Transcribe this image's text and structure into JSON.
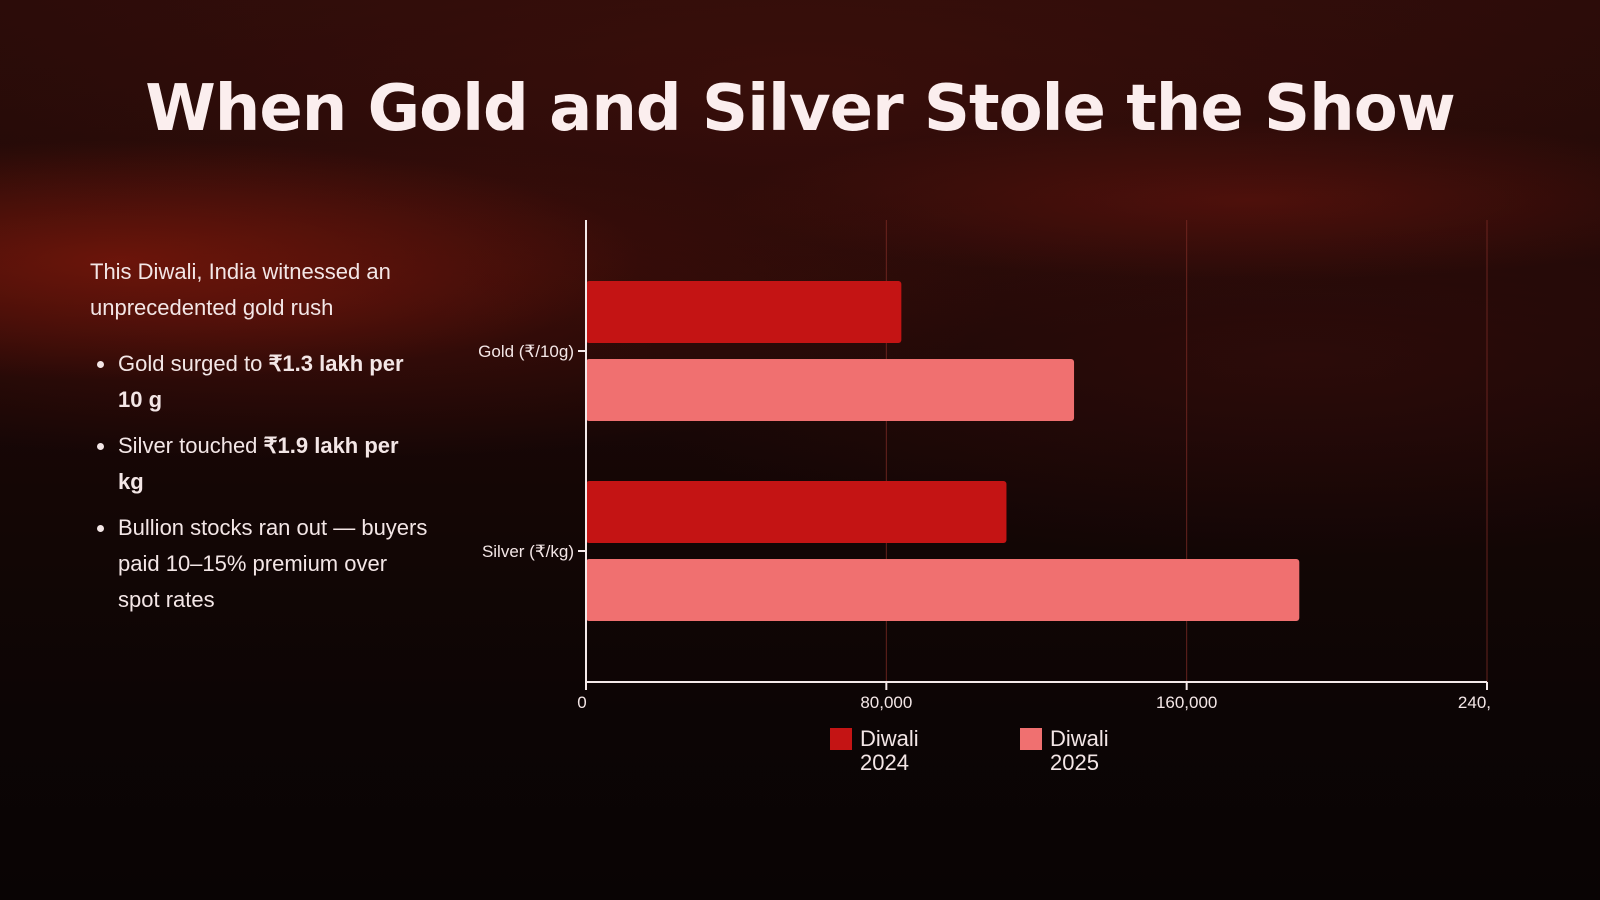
{
  "title": "When Gold and Silver Stole the Show",
  "left_panel": {
    "intro": "This Diwali, India witnessed an unprecedented gold rush",
    "bullets": [
      {
        "prefix": "Gold surged to ",
        "bold": "₹1.3 lakh per 10 g",
        "suffix": ""
      },
      {
        "prefix": "Silver touched ",
        "bold": "₹1.9 lakh per kg",
        "suffix": ""
      },
      {
        "prefix": "Bullion stocks ran out — buyers paid 10–15% premium over spot rates",
        "bold": "",
        "suffix": ""
      }
    ]
  },
  "colors": {
    "series_2024": "#c41414",
    "series_2025": "#f07070",
    "axis": "#f4eaea",
    "grid": "#7a2a24"
  },
  "chart_data": {
    "type": "bar",
    "orientation": "horizontal",
    "categories": [
      "Gold (₹/10g)",
      "Silver (₹/kg)"
    ],
    "series": [
      {
        "name": "Diwali 2024",
        "values": [
          84000,
          112000
        ]
      },
      {
        "name": "Diwali 2025",
        "values": [
          130000,
          190000
        ]
      }
    ],
    "x_ticks": [
      "0",
      "80,000",
      "160,000",
      "240,"
    ],
    "xlim": [
      0,
      240000
    ],
    "grid": true,
    "legend_position": "bottom"
  }
}
